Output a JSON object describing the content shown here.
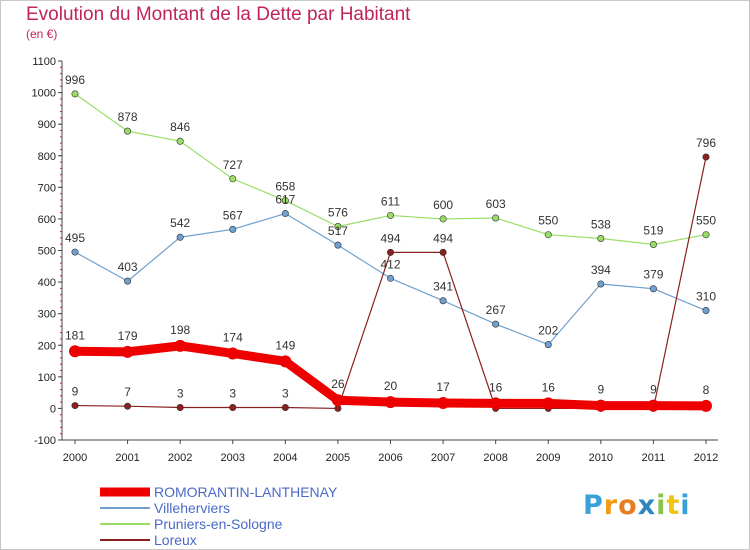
{
  "title": "Evolution du Montant de la Dette par Habitant",
  "subtitle": "(en €)",
  "logo_text": "Proxiti",
  "logo_colors": [
    "#3aa0d8",
    "#f39c12",
    "#e67e22",
    "#2e86c1",
    "#8bc34a",
    "#f1c40f",
    "#3aa0d8"
  ],
  "chart_data": {
    "type": "line",
    "x": [
      "2000",
      "2001",
      "2002",
      "2003",
      "2004",
      "2005",
      "2006",
      "2007",
      "2008",
      "2009",
      "2010",
      "2011",
      "2012"
    ],
    "ylim": [
      -100,
      1100
    ],
    "yticks": [
      -100,
      0,
      100,
      200,
      300,
      400,
      500,
      600,
      700,
      800,
      900,
      1000,
      1100
    ],
    "grid": false,
    "legend_position": "bottom-left",
    "series": [
      {
        "name": "ROMORANTIN-LANTHENAY",
        "color": "#ee0000",
        "width": 9,
        "marker": 6,
        "values": [
          181,
          179,
          198,
          174,
          149,
          26,
          20,
          17,
          16,
          16,
          9,
          9,
          8
        ]
      },
      {
        "name": "Villeherviers",
        "color": "#6fa0cf",
        "width": 1.2,
        "marker": 3.2,
        "values": [
          495,
          403,
          542,
          567,
          617,
          517,
          412,
          341,
          267,
          202,
          394,
          379,
          310
        ]
      },
      {
        "name": "Pruniers-en-Sologne",
        "color": "#99dd66",
        "width": 1.2,
        "marker": 3.2,
        "values": [
          996,
          878,
          846,
          727,
          658,
          576,
          611,
          600,
          603,
          550,
          538,
          519,
          550
        ]
      },
      {
        "name": "Loreux",
        "color": "#8b2020",
        "width": 1.2,
        "marker": 3.2,
        "values": [
          9,
          7,
          3,
          3,
          3,
          0,
          494,
          494,
          0,
          0,
          0,
          0,
          796
        ]
      }
    ]
  }
}
